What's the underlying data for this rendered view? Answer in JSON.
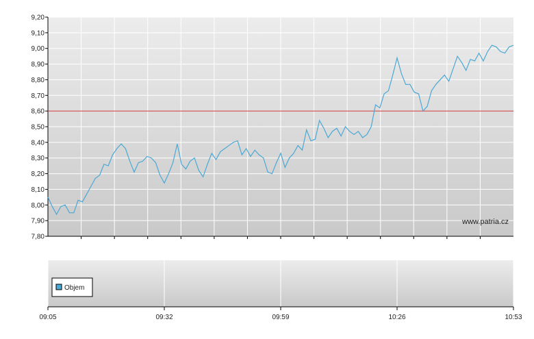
{
  "chart_data": {
    "type": "line",
    "x": [
      "09:05",
      "09:06",
      "09:07",
      "09:08",
      "09:09",
      "09:10",
      "09:11",
      "09:12",
      "09:13",
      "09:14",
      "09:15",
      "09:16",
      "09:17",
      "09:18",
      "09:19",
      "09:20",
      "09:21",
      "09:22",
      "09:23",
      "09:24",
      "09:25",
      "09:26",
      "09:27",
      "09:28",
      "09:29",
      "09:30",
      "09:31",
      "09:32",
      "09:33",
      "09:34",
      "09:35",
      "09:36",
      "09:37",
      "09:38",
      "09:39",
      "09:40",
      "09:41",
      "09:42",
      "09:43",
      "09:44",
      "09:45",
      "09:46",
      "09:47",
      "09:48",
      "09:49",
      "09:50",
      "09:51",
      "09:52",
      "09:53",
      "09:54",
      "09:55",
      "09:56",
      "09:57",
      "09:58",
      "09:59",
      "10:00",
      "10:01",
      "10:02",
      "10:03",
      "10:04",
      "10:05",
      "10:06",
      "10:07",
      "10:08",
      "10:09",
      "10:10",
      "10:11",
      "10:12",
      "10:13",
      "10:14",
      "10:15",
      "10:16",
      "10:17",
      "10:18",
      "10:19",
      "10:20",
      "10:21",
      "10:22",
      "10:23",
      "10:24",
      "10:25",
      "10:26",
      "10:27",
      "10:28",
      "10:29",
      "10:30",
      "10:31",
      "10:32",
      "10:33",
      "10:34",
      "10:35",
      "10:36",
      "10:37",
      "10:38",
      "10:39",
      "10:40",
      "10:41",
      "10:42",
      "10:43",
      "10:44",
      "10:45",
      "10:46",
      "10:47",
      "10:48",
      "10:49",
      "10:50",
      "10:51",
      "10:52",
      "10:53"
    ],
    "values": [
      8.05,
      7.99,
      7.94,
      7.99,
      8.0,
      7.95,
      7.95,
      8.03,
      8.02,
      8.07,
      8.12,
      8.17,
      8.19,
      8.26,
      8.25,
      8.32,
      8.36,
      8.39,
      8.36,
      8.28,
      8.21,
      8.27,
      8.28,
      8.31,
      8.3,
      8.27,
      8.19,
      8.14,
      8.2,
      8.27,
      8.39,
      8.26,
      8.23,
      8.28,
      8.3,
      8.22,
      8.18,
      8.26,
      8.33,
      8.29,
      8.34,
      8.36,
      8.38,
      8.4,
      8.41,
      8.32,
      8.36,
      8.31,
      8.35,
      8.32,
      8.3,
      8.21,
      8.2,
      8.27,
      8.33,
      8.24,
      8.3,
      8.33,
      8.38,
      8.35,
      8.48,
      8.41,
      8.42,
      8.54,
      8.49,
      8.43,
      8.47,
      8.49,
      8.44,
      8.5,
      8.47,
      8.45,
      8.47,
      8.43,
      8.45,
      8.5,
      8.64,
      8.62,
      8.71,
      8.73,
      8.83,
      8.94,
      8.84,
      8.77,
      8.77,
      8.72,
      8.71,
      8.6,
      8.63,
      8.73,
      8.77,
      8.8,
      8.83,
      8.79,
      8.87,
      8.95,
      8.91,
      8.86,
      8.93,
      8.92,
      8.97,
      8.92,
      8.98,
      9.02,
      9.01,
      8.98,
      8.97,
      9.01,
      9.02
    ],
    "color": "#4aa8d4",
    "xlim": [
      "09:05",
      "10:53"
    ],
    "xticks": [
      "09:05",
      "09:32",
      "09:59",
      "10:26",
      "10:53"
    ],
    "ylim": [
      7.8,
      9.2
    ],
    "yticks": [
      {
        "value": 7.8,
        "label": "7,80"
      },
      {
        "value": 7.9,
        "label": "7,90"
      },
      {
        "value": 8.0,
        "label": "8,00"
      },
      {
        "value": 8.1,
        "label": "8,10"
      },
      {
        "value": 8.2,
        "label": "8,20"
      },
      {
        "value": 8.3,
        "label": "8,30"
      },
      {
        "value": 8.4,
        "label": "8,40"
      },
      {
        "value": 8.5,
        "label": "8,50"
      },
      {
        "value": 8.6,
        "label": "8,60"
      },
      {
        "value": 8.7,
        "label": "8,70"
      },
      {
        "value": 8.8,
        "label": "8,80"
      },
      {
        "value": 8.9,
        "label": "8,90"
      },
      {
        "value": 9.0,
        "label": "9,00"
      },
      {
        "value": 9.1,
        "label": "9,10"
      },
      {
        "value": 9.2,
        "label": "9,20"
      }
    ],
    "grid": true,
    "reference_line": {
      "value": 8.6,
      "color": "#cc3333"
    },
    "watermark": "www.patria.cz",
    "volume_legend": "Objem",
    "volume_color": "#4aa8d4"
  }
}
